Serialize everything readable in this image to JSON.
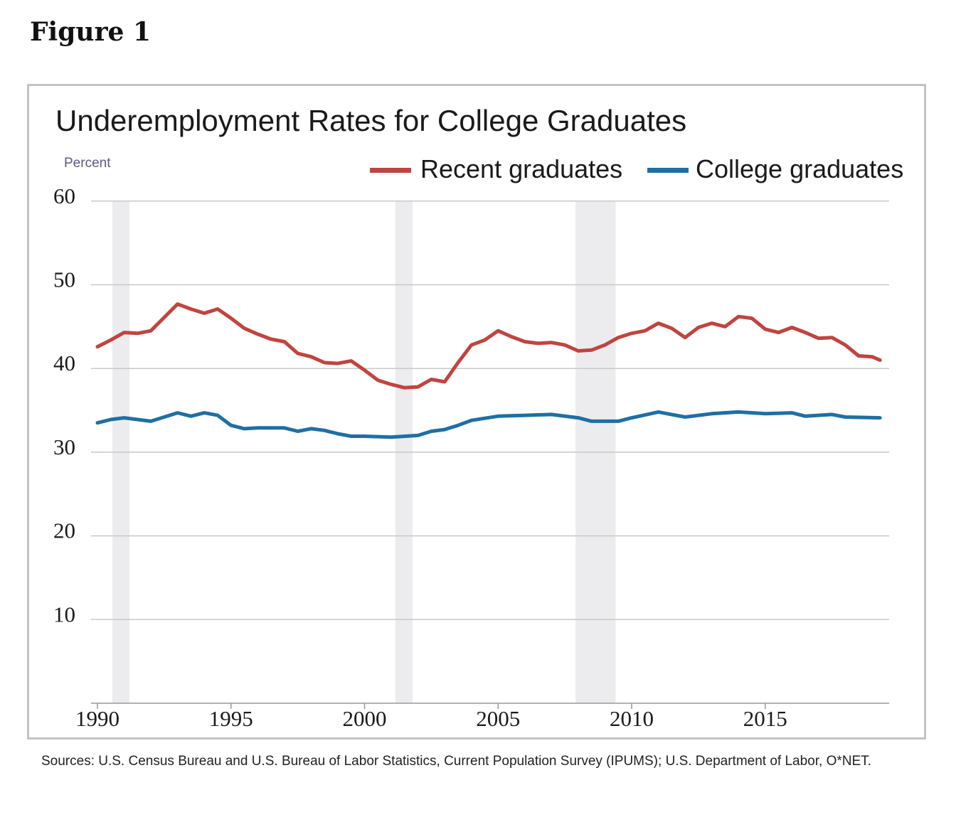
{
  "figure_label": "Figure 1",
  "sources": "Sources: U.S. Census Bureau and U.S. Bureau of Labor Statistics, Current Population Survey (IPUMS); U.S. Department of Labor, O*NET.",
  "chart_data": {
    "type": "line",
    "title": "Underemployment Rates for College Graduates",
    "ylabel": "Percent",
    "xlabel": "",
    "xlim": [
      1990,
      2019.6
    ],
    "ylim": [
      0,
      60
    ],
    "yticks": [
      10,
      20,
      30,
      40,
      50,
      60
    ],
    "xticks": [
      1990,
      1995,
      2000,
      2005,
      2010,
      2015
    ],
    "grid": true,
    "legend": "top-right",
    "recession_shading": [
      [
        1990.56,
        1991.2
      ],
      [
        2001.15,
        2001.8
      ],
      [
        2007.9,
        2009.4
      ]
    ],
    "shading_color": "#ececee",
    "series": [
      {
        "name": "Recent graduates",
        "color": "#c0443f",
        "x": [
          1990,
          1990.5,
          1991,
          1991.5,
          1992,
          1992.5,
          1993,
          1993.5,
          1994,
          1994.5,
          1995,
          1995.5,
          1996,
          1996.5,
          1997,
          1997.5,
          1998,
          1998.5,
          1999,
          1999.5,
          2000,
          2000.5,
          2001,
          2001.5,
          2002,
          2002.5,
          2003,
          2003.5,
          2004,
          2004.5,
          2005,
          2005.5,
          2006,
          2006.5,
          2007,
          2007.5,
          2008,
          2008.5,
          2009,
          2009.5,
          2010,
          2010.5,
          2011,
          2011.5,
          2012,
          2012.5,
          2013,
          2013.5,
          2014,
          2014.5,
          2015,
          2015.5,
          2016,
          2016.5,
          2017,
          2017.5,
          2018,
          2018.5,
          2019,
          2019.3
        ],
        "values": [
          42.6,
          43.4,
          44.3,
          44.2,
          44.5,
          46.1,
          47.7,
          47.1,
          46.6,
          47.1,
          46.0,
          44.8,
          44.1,
          43.5,
          43.2,
          41.8,
          41.4,
          40.7,
          40.6,
          40.9,
          39.8,
          38.6,
          38.1,
          37.7,
          37.8,
          38.7,
          38.4,
          40.7,
          42.8,
          43.4,
          44.5,
          43.8,
          43.2,
          43.0,
          43.1,
          42.8,
          42.1,
          42.2,
          42.8,
          43.7,
          44.2,
          44.5,
          45.4,
          44.8,
          43.7,
          44.9,
          45.4,
          45.0,
          46.2,
          46.0,
          44.7,
          44.3,
          44.9,
          44.3,
          43.6,
          43.7,
          42.8,
          41.5,
          41.4,
          41.0
        ]
      },
      {
        "name": "College graduates",
        "color": "#1f6fa3",
        "x": [
          1990,
          1990.5,
          1991,
          1992,
          1993,
          1993.5,
          1994,
          1994.5,
          1995,
          1995.5,
          1996,
          1997,
          1997.5,
          1998,
          1998.5,
          1999,
          1999.5,
          2000,
          2001,
          2002,
          2002.5,
          2003,
          2003.5,
          2004,
          2005,
          2006,
          2007,
          2008,
          2008.5,
          2009.5,
          2010,
          2011,
          2012,
          2013,
          2014,
          2015,
          2016,
          2016.5,
          2017.5,
          2018,
          2019.3
        ],
        "values": [
          33.5,
          33.9,
          34.1,
          33.7,
          34.7,
          34.3,
          34.7,
          34.4,
          33.2,
          32.8,
          32.9,
          32.9,
          32.5,
          32.8,
          32.6,
          32.2,
          31.9,
          31.9,
          31.8,
          32.0,
          32.5,
          32.7,
          33.2,
          33.8,
          34.3,
          34.4,
          34.5,
          34.1,
          33.7,
          33.7,
          34.1,
          34.8,
          34.2,
          34.6,
          34.8,
          34.6,
          34.7,
          34.3,
          34.5,
          34.2,
          34.1
        ]
      }
    ]
  }
}
